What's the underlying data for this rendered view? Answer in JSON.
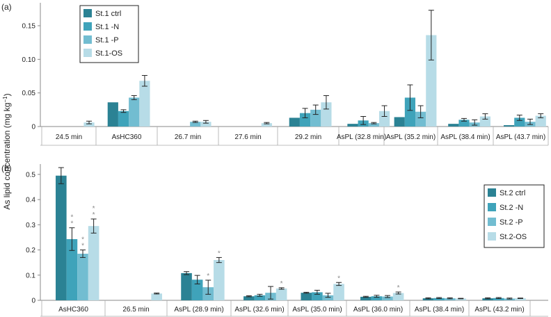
{
  "ylabel_main": "As lipid concentration (mg kg",
  "ylabel_sup": "−1",
  "ylabel_end": ")",
  "colors": [
    "#2b8294",
    "#3fa3ba",
    "#72bdd1",
    "#b7dce7"
  ],
  "chart_data": [
    {
      "type": "bar",
      "panel_label": "(a)",
      "categories": [
        "24.5 min",
        "AsHC360",
        "26.7 min",
        "27.6 min",
        "29.2 min",
        "AsPL (32.8 min)",
        "AsPL (35.2 min)",
        "AsPL (38.4 min)",
        "AsPL (43.7 min)"
      ],
      "yticks": [
        "0",
        "0.05",
        "0.10",
        "0.15"
      ],
      "ylim": [
        0,
        0.18
      ],
      "legend_position": "top-left",
      "series": [
        {
          "name": "St.1 ctrl",
          "values": [
            null,
            0.036,
            null,
            null,
            0.013,
            0.004,
            0.014,
            0.004,
            0.002
          ],
          "errors": [
            null,
            0,
            null,
            null,
            0,
            0,
            0,
            0,
            0
          ]
        },
        {
          "name": "St.1 -N",
          "values": [
            null,
            0.023,
            null,
            null,
            0.02,
            0.009,
            0.043,
            0.01,
            0.013
          ],
          "errors": [
            null,
            0.002,
            null,
            null,
            0.007,
            0.006,
            0.019,
            0.002,
            0.004
          ]
        },
        {
          "name": "St.1 -P",
          "values": [
            null,
            0.043,
            0.007,
            null,
            0.025,
            0.005,
            0.022,
            0.006,
            0.007
          ],
          "errors": [
            null,
            0.003,
            0.001,
            null,
            0.007,
            0.001,
            0.009,
            0.004,
            0.004
          ]
        },
        {
          "name": "St.1-OS",
          "values": [
            0.006,
            0.068,
            0.007,
            0.005,
            0.036,
            0.023,
            0.136,
            0.015,
            0.016
          ],
          "errors": [
            0.002,
            0.008,
            0.002,
            0.001,
            0.01,
            0.008,
            0.037,
            0.004,
            0.003
          ]
        }
      ]
    },
    {
      "type": "bar",
      "panel_label": "(b)",
      "categories": [
        "AsHC360",
        "26.5 min",
        "AsPL (28.9 min)",
        "AsPL (32.6 min)",
        "AsPL (35.0 min)",
        "AsPL (36.0 min)",
        "AsPL (38.4 min)",
        "AsPL (43.2 min)"
      ],
      "yticks": [
        "0",
        "0.1",
        "0.2",
        "0.3",
        "0.4",
        "0.5"
      ],
      "ylim": [
        0,
        0.53
      ],
      "legend_position": "right",
      "series": [
        {
          "name": "St.2 ctrl",
          "values": [
            0.495,
            null,
            0.108,
            0.016,
            0.03,
            0.014,
            0.008,
            0.008
          ],
          "errors": [
            0.032,
            null,
            0.006,
            0.002,
            0.002,
            0.002,
            0.002,
            0.002
          ],
          "stars": [
            0,
            0,
            0,
            0,
            0,
            0,
            0,
            0
          ]
        },
        {
          "name": "St.2 -N",
          "values": [
            0.243,
            null,
            0.082,
            0.02,
            0.032,
            0.016,
            0.009,
            0.009
          ],
          "errors": [
            0.045,
            null,
            0.017,
            0.004,
            0.008,
            0.004,
            0.002,
            0.002
          ],
          "stars": [
            2,
            0,
            0,
            0,
            0,
            0,
            0,
            0
          ]
        },
        {
          "name": "St.2 -P",
          "values": [
            0.185,
            null,
            0.052,
            0.03,
            0.02,
            0.015,
            0.008,
            0.007
          ],
          "errors": [
            0.015,
            null,
            0.028,
            0.025,
            0.008,
            0.004,
            0.002,
            0.002
          ],
          "stars": [
            2,
            0,
            1,
            0,
            0,
            0,
            0,
            0
          ]
        },
        {
          "name": "St.2-OS",
          "values": [
            0.295,
            0.027,
            0.16,
            0.047,
            0.065,
            0.029,
            0.007,
            0.008
          ],
          "errors": [
            0.028,
            0.002,
            0.01,
            0.003,
            0.006,
            0.004,
            0.001,
            0.001
          ],
          "stars": [
            2,
            0,
            1,
            1,
            1,
            1,
            0,
            0
          ]
        }
      ]
    }
  ]
}
